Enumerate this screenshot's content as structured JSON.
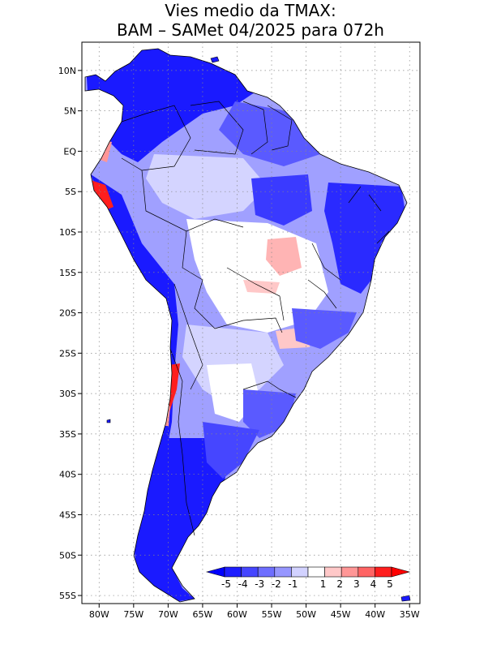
{
  "title": {
    "line1": "Vies medio da TMAX:",
    "line2": "BAM – SAMet 04/2025  para 072h"
  },
  "map": {
    "lat_labels": [
      "10N",
      "5N",
      "EQ",
      "5S",
      "10S",
      "15S",
      "20S",
      "25S",
      "30S",
      "35S",
      "40S",
      "45S",
      "50S",
      "55S"
    ],
    "lon_labels": [
      "80W",
      "75W",
      "70W",
      "65W",
      "60W",
      "55W",
      "50W",
      "45W",
      "40W",
      "35W"
    ],
    "lat_values": [
      10,
      5,
      0,
      -5,
      -10,
      -15,
      -20,
      -25,
      -30,
      -35,
      -40,
      -45,
      -50,
      -55
    ],
    "lon_values": [
      -80,
      -75,
      -70,
      -65,
      -60,
      -55,
      -50,
      -45,
      -40,
      -35
    ],
    "extent": {
      "lon_min": -82.5,
      "lon_max": -33.5,
      "lat_min": -56,
      "lat_max": 13.5
    }
  },
  "colorbar": {
    "labels": [
      "-5",
      "-4",
      "-3",
      "-2",
      "-1",
      "1",
      "2",
      "3",
      "4",
      "5"
    ],
    "colors": [
      "#1e1eff",
      "#4646ff",
      "#6e6eff",
      "#9696ff",
      "#d2d2ff",
      "#ffffff",
      "#ffc8c8",
      "#ff9696",
      "#ff6464",
      "#ff1e1e"
    ],
    "low_color": "#0000ff",
    "high_color": "#ff0000"
  },
  "colors": {
    "strong_blue": "#1a1aff",
    "medium_blue": "#5a5aff",
    "light_blue": "#a0a0ff",
    "pale_blue": "#d4d4ff",
    "white": "#ffffff",
    "pink": "#ffb4b4",
    "red": "#ff1e1e"
  }
}
